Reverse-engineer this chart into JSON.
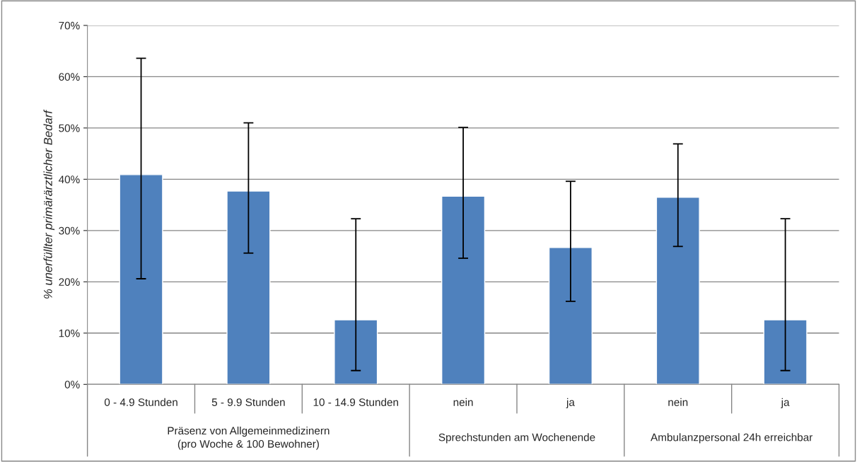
{
  "chart_data": {
    "type": "bar",
    "ylabel": "% unerfüllter primärärztlicher Bedarf",
    "categories": [
      "0 - 4.9 Stunden",
      "5 - 9.9 Stunden",
      "10 - 14.9 Stunden",
      "nein",
      "ja",
      "nein",
      "ja"
    ],
    "values": [
      40.9,
      37.7,
      12.6,
      36.7,
      26.7,
      36.5,
      12.6
    ],
    "errors": [
      [
        20.6,
        63.6
      ],
      [
        25.6,
        51.0
      ],
      [
        2.7,
        32.3
      ],
      [
        24.6,
        50.1
      ],
      [
        16.2,
        39.6
      ],
      [
        26.9,
        46.9
      ],
      [
        2.7,
        32.3
      ]
    ],
    "color": "#4f81bd",
    "ylim": [
      0,
      70
    ],
    "yticks": [
      {
        "value": 0,
        "label": "0%"
      },
      {
        "value": 10,
        "label": "10%"
      },
      {
        "value": 20,
        "label": "20%"
      },
      {
        "value": 30,
        "label": "30%"
      },
      {
        "value": 40,
        "label": "40%"
      },
      {
        "value": 50,
        "label": "50%"
      },
      {
        "value": 60,
        "label": "60%"
      },
      {
        "value": 70,
        "label": "70%"
      }
    ],
    "grid": "y",
    "annotations": [
      "Präsenz von Allgemeinmedizinern\n(pro Woche & 100 Bewohner)",
      "Sprechstunden am Wochenende",
      "Ambulanzpersonal 24h erreichbar"
    ]
  }
}
